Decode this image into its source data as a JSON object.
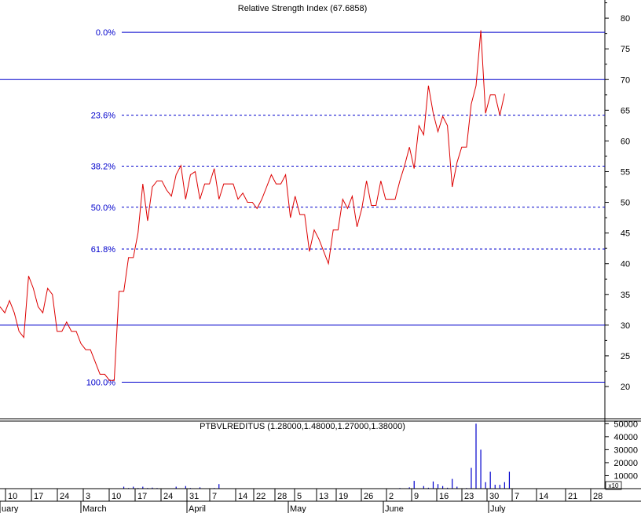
{
  "chart_data": [
    {
      "type": "line",
      "title": "Relative Strength Index (67.6858)",
      "ylim": [
        12,
        84
      ],
      "y_ticks": [
        20,
        25,
        30,
        35,
        40,
        45,
        50,
        55,
        60,
        65,
        70,
        75,
        80
      ],
      "reference_lines": [
        30,
        70
      ],
      "fibonacci": {
        "low": 20.7,
        "high": 77.7,
        "levels": [
          {
            "label": "0.0%",
            "value": 77.7
          },
          {
            "label": "23.6%",
            "value": 64.2
          },
          {
            "label": "38.2%",
            "value": 55.9
          },
          {
            "label": "50.0%",
            "value": 49.2
          },
          {
            "label": "61.8%",
            "value": 42.4
          },
          {
            "label": "100.0%",
            "value": 20.7
          }
        ]
      },
      "series": [
        {
          "color": "#dd0000",
          "values": [
            33.0,
            32.0,
            34.0,
            32.0,
            29.0,
            28.0,
            38.0,
            36.0,
            33.0,
            32.0,
            36.0,
            35.0,
            29.0,
            29.0,
            30.5,
            29.0,
            29.0,
            27.0,
            26.0,
            26.0,
            24.0,
            22.0,
            22.0,
            21.0,
            21.0,
            35.5,
            35.5,
            41.0,
            41.0,
            45.0,
            53.0,
            47.0,
            52.5,
            53.5,
            53.5,
            52.0,
            51.0,
            54.5,
            56.0,
            50.5,
            54.5,
            55.0,
            50.5,
            53.0,
            53.0,
            55.5,
            50.5,
            53.0,
            53.0,
            53.0,
            50.5,
            51.5,
            50.0,
            50.0,
            49.0,
            50.5,
            52.5,
            54.5,
            53.0,
            53.0,
            54.5,
            47.5,
            51.0,
            48.0,
            48.0,
            42.0,
            45.5,
            44.0,
            42.0,
            40.0,
            45.5,
            45.5,
            50.5,
            49.0,
            51.0,
            46.0,
            49.0,
            53.5,
            49.5,
            49.5,
            53.5,
            50.5,
            50.5,
            50.5,
            53.5,
            56.0,
            59.0,
            55.5,
            62.5,
            61.0,
            69.0,
            64.5,
            61.5,
            64.0,
            62.5,
            52.5,
            56.5,
            59.0,
            59.0,
            66.0,
            69.0,
            78.0,
            64.5,
            67.5,
            67.5,
            64.2,
            67.7
          ]
        }
      ]
    },
    {
      "type": "bar",
      "title": "PTBVLREDITUS (1.28000,1.48000,1.27000,1.38000)",
      "ylim": [
        0,
        52000
      ],
      "y_ticks": [
        10000,
        20000,
        30000,
        40000,
        50000
      ],
      "y_tick_labels": [
        "10000",
        "20000",
        "30000",
        "40000",
        "50000"
      ],
      "multiplier_label": "x10",
      "values": [
        0,
        0,
        0,
        0,
        0,
        0,
        0,
        200,
        0,
        200,
        200,
        200,
        0,
        0,
        0,
        0,
        0,
        0,
        0,
        0,
        0,
        0,
        0,
        0,
        0,
        0,
        1500,
        500,
        1500,
        500,
        1500,
        500,
        800,
        500,
        0,
        0,
        0,
        1500,
        0,
        2000,
        500,
        0,
        1000,
        0,
        0,
        500,
        3500,
        0,
        0,
        0,
        0,
        0,
        0,
        0,
        0,
        0,
        0,
        0,
        200,
        200,
        200,
        200,
        200,
        0,
        0,
        0,
        200,
        0,
        0,
        0,
        0,
        0,
        0,
        0,
        0,
        0,
        0,
        0,
        0,
        0,
        0,
        0,
        0,
        0,
        500,
        300,
        1000,
        6000,
        300,
        2000,
        700,
        5500,
        3500,
        2000,
        700,
        7500,
        1500,
        300,
        500,
        16000,
        50000,
        30000,
        5000,
        13000,
        3000,
        3000,
        5000,
        13000
      ]
    }
  ],
  "x_axis": {
    "week_labels": [
      "10",
      "17",
      "24",
      "3",
      "10",
      "17",
      "24",
      "31",
      "7",
      "14",
      "22",
      "28",
      "5",
      "13",
      "19",
      "26",
      "2",
      "9",
      "16",
      "23",
      "30",
      "7",
      "14",
      "21",
      "28"
    ],
    "month_labels": [
      "uary",
      "March",
      "April",
      "May",
      "June",
      "July"
    ]
  }
}
